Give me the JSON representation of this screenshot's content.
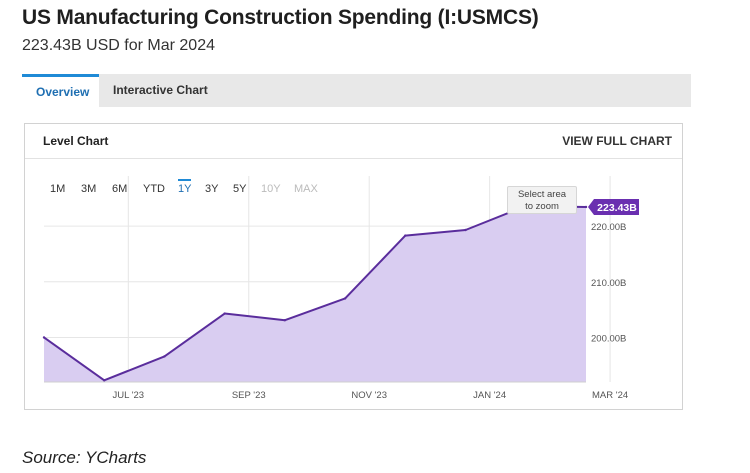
{
  "page": {
    "title": "US Manufacturing Construction Spending (I:USMCS)",
    "subtitle": "223.43B USD for Mar 2024",
    "source": "Source: YCharts"
  },
  "tabs": [
    {
      "label": "Overview",
      "active": true
    },
    {
      "label": "Interactive Chart",
      "active": false
    }
  ],
  "card": {
    "title": "Level Chart",
    "view_full": "VIEW FULL CHART"
  },
  "ranges": [
    {
      "label": "1M",
      "state": "normal"
    },
    {
      "label": "3M",
      "state": "normal"
    },
    {
      "label": "6M",
      "state": "normal"
    },
    {
      "label": "YTD",
      "state": "normal"
    },
    {
      "label": "1Y",
      "state": "active"
    },
    {
      "label": "3Y",
      "state": "normal"
    },
    {
      "label": "5Y",
      "state": "normal"
    },
    {
      "label": "10Y",
      "state": "disabled"
    },
    {
      "label": "MAX",
      "state": "disabled"
    }
  ],
  "zoom_hint": {
    "line1": "Select area",
    "line2": "to zoom"
  },
  "chart_data": {
    "type": "area",
    "x": [
      "2023-06",
      "2023-07",
      "2023-08",
      "2023-09",
      "2023-10",
      "2023-11",
      "2023-12",
      "2024-01",
      "2024-02",
      "2024-03"
    ],
    "x_display": [
      "JUL '23",
      "SEP '23",
      "NOV '23",
      "JAN '24",
      "MAR '24"
    ],
    "series": [
      {
        "values": [
          200.0,
          192.3,
          196.6,
          204.3,
          203.1,
          207.0,
          218.3,
          219.3,
          223.6,
          223.43
        ]
      }
    ],
    "y_ticks": [
      "200.00B",
      "210.00B",
      "220.00B"
    ],
    "y_tick_values": [
      200,
      210,
      220
    ],
    "ylim": [
      192,
      229
    ],
    "last_value_label": "223.43B",
    "grid": true,
    "colors": {
      "line": "#5a2d9c",
      "fill": "#d9cdf1",
      "badge": "#6a2fb0",
      "grid": "#e6e6e6"
    }
  }
}
